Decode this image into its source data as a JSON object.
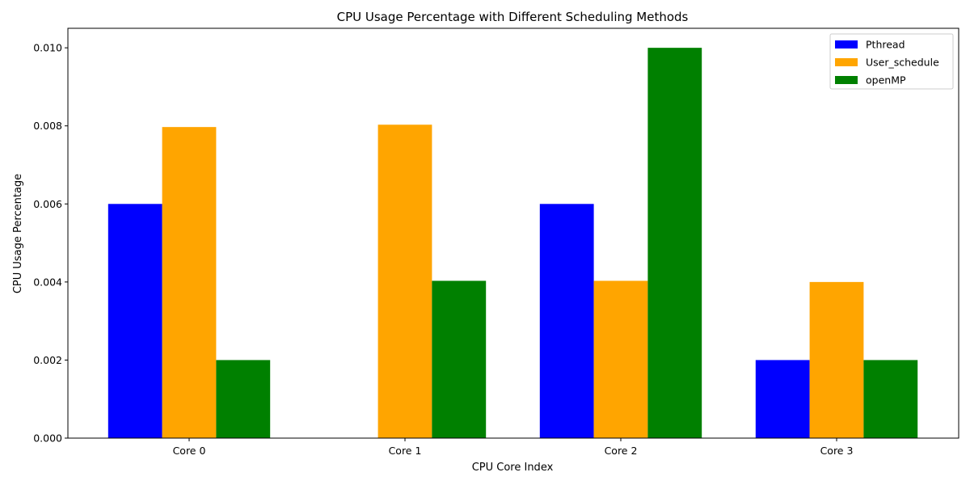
{
  "chart_data": {
    "type": "bar",
    "title": "CPU Usage Percentage with Different Scheduling Methods",
    "xlabel": "CPU Core Index",
    "ylabel": "CPU Usage Percentage",
    "categories": [
      "Core 0",
      "Core 1",
      "Core 2",
      "Core 3"
    ],
    "series": [
      {
        "name": "Pthread",
        "color": "#0000ff",
        "values": [
          0.006,
          0.0,
          0.006,
          0.002
        ]
      },
      {
        "name": "User_schedule",
        "color": "#ffa500",
        "values": [
          0.00797,
          0.00803,
          0.00403,
          0.004
        ]
      },
      {
        "name": "openMP",
        "color": "#008000",
        "values": [
          0.002,
          0.00403,
          0.01,
          0.002
        ]
      }
    ],
    "ylim": [
      0,
      0.0105
    ],
    "yticks": [
      0.0,
      0.002,
      0.004,
      0.006,
      0.008,
      0.01
    ],
    "ytick_labels": [
      "0.000",
      "0.002",
      "0.004",
      "0.006",
      "0.008",
      "0.010"
    ],
    "grid": false,
    "legend_position": "top-right"
  }
}
